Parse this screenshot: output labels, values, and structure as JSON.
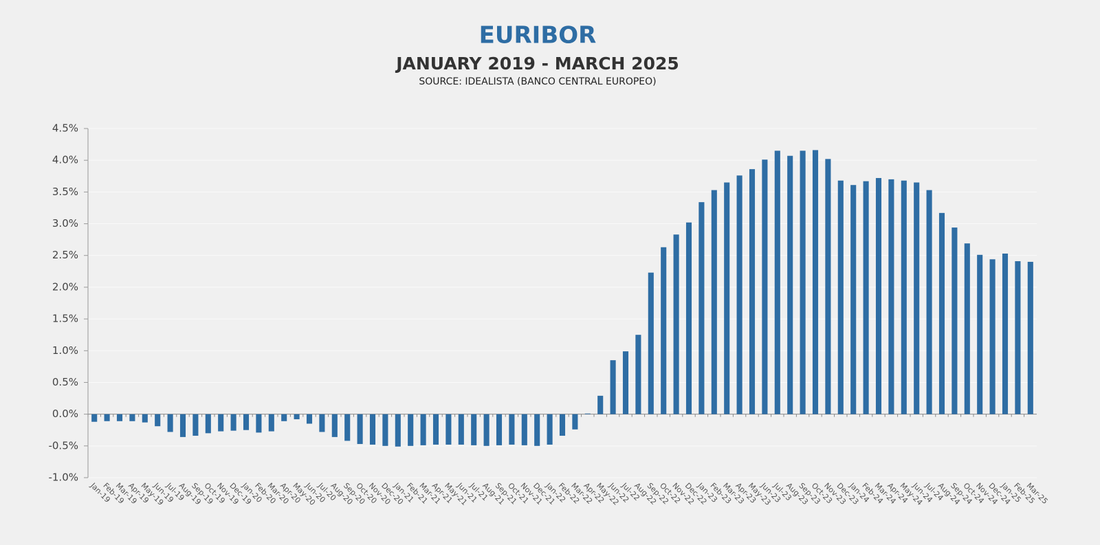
{
  "chart_data": {
    "type": "bar",
    "title": "EURIBOR",
    "subtitle": "JANUARY 2019 - MARCH 2025",
    "source": "SOURCE: IDEALISTA (BANCO CENTRAL EUROPEO)",
    "color": "#2e6da4",
    "grid": true,
    "ylim": [
      -1.0,
      4.5
    ],
    "yticks": [
      {
        "value": -1.0,
        "label": "-1.0%"
      },
      {
        "value": -0.5,
        "label": "-0.5%"
      },
      {
        "value": 0,
        "label": "0.0%"
      },
      {
        "value": 0.5,
        "label": "0.5%"
      },
      {
        "value": 1.0,
        "label": "1.0%"
      },
      {
        "value": 1.5,
        "label": "1.5%"
      },
      {
        "value": 2.0,
        "label": "2.0%"
      },
      {
        "value": 2.5,
        "label": "2.5%"
      },
      {
        "value": 3.0,
        "label": "3.0%"
      },
      {
        "value": 3.5,
        "label": "3.5%"
      },
      {
        "value": 4.0,
        "label": "4.0%"
      },
      {
        "value": 4.5,
        "label": "4.5%"
      }
    ],
    "categories": [
      "Jan-19",
      "Feb-19",
      "Mar-19",
      "Apr-19",
      "May-19",
      "Jun-19",
      "Jul-19",
      "Aug-19",
      "Sep-19",
      "Oct-19",
      "Nov-19",
      "Dec-19",
      "Jan-20",
      "Feb-20",
      "Mar-20",
      "Apr-20",
      "May-20",
      "Jun-20",
      "Jul-20",
      "Aug-20",
      "Sep-20",
      "Oct-20",
      "Nov-20",
      "Dec-20",
      "Jan-21",
      "Feb-21",
      "Mar-21",
      "Apr-21",
      "May-21",
      "Jun-21",
      "Jul-21",
      "Aug-21",
      "Sep-21",
      "Oct-21",
      "Nov-21",
      "Dec-21",
      "Jan-22",
      "Feb-22",
      "Mar-22",
      "Apr-22",
      "May-22",
      "Jun-22",
      "Jul-22",
      "Aug-22",
      "Sep-22",
      "Oct-22",
      "Nov-22",
      "Dec-22",
      "Jan-23",
      "Feb-23",
      "Mar-23",
      "Apr-23",
      "May-23",
      "Jun-23",
      "Jul-23",
      "Aug-23",
      "Sep-23",
      "Oct-23",
      "Nov-23",
      "Dec-23",
      "Jan-24",
      "Feb-24",
      "Mar-24",
      "Apr-24",
      "May-24",
      "Jun-24",
      "Jul-24",
      "Aug-24",
      "Sep-24",
      "Oct-24",
      "Nov-24",
      "Dec-24",
      "Jan-25",
      "Feb-25",
      "Mar-25"
    ],
    "values": [
      -0.12,
      -0.11,
      -0.11,
      -0.11,
      -0.13,
      -0.19,
      -0.28,
      -0.36,
      -0.34,
      -0.3,
      -0.27,
      -0.26,
      -0.25,
      -0.29,
      -0.27,
      -0.11,
      -0.08,
      -0.15,
      -0.28,
      -0.36,
      -0.42,
      -0.47,
      -0.48,
      -0.5,
      -0.51,
      -0.5,
      -0.49,
      -0.48,
      -0.48,
      -0.48,
      -0.49,
      -0.5,
      -0.49,
      -0.48,
      -0.49,
      -0.5,
      -0.48,
      -0.34,
      -0.24,
      0.01,
      0.29,
      0.85,
      0.99,
      1.25,
      2.23,
      2.63,
      2.83,
      3.02,
      3.34,
      3.53,
      3.65,
      3.76,
      3.86,
      4.01,
      4.15,
      4.07,
      4.15,
      4.16,
      4.02,
      3.68,
      3.61,
      3.67,
      3.72,
      3.7,
      3.68,
      3.65,
      3.53,
      3.17,
      2.94,
      2.69,
      2.51,
      2.44,
      2.53,
      2.41,
      2.4
    ]
  }
}
